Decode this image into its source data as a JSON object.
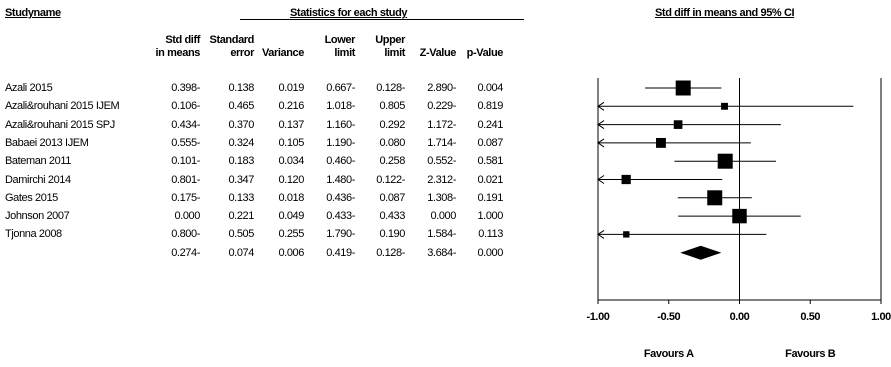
{
  "header": {
    "study_name": "Studyname",
    "stats_group": "Statistics for each study",
    "ci_title": "Std diff in means and 95% CI"
  },
  "columns": [
    "Std diff\nin means",
    "Standard\nerror",
    "Variance",
    "Lower\nlimit",
    "Upper\nlimit",
    "Z-Value",
    "p-Value"
  ],
  "rows": [
    {
      "study": "Azali 2015",
      "cells": [
        "0.398-",
        "0.138",
        "0.019",
        "0.667-",
        "0.128-",
        "2.890-",
        "0.004"
      ]
    },
    {
      "study": "Azali&rouhani 2015 IJEM",
      "cells": [
        "0.106-",
        "0.465",
        "0.216",
        "1.018-",
        "0.805",
        "0.229-",
        "0.819"
      ]
    },
    {
      "study": "Azali&rouhani 2015 SPJ",
      "cells": [
        "0.434-",
        "0.370",
        "0.137",
        "1.160-",
        "0.292",
        "1.172-",
        "0.241"
      ]
    },
    {
      "study": "Babaei 2013 IJEM",
      "cells": [
        "0.555-",
        "0.324",
        "0.105",
        "1.190-",
        "0.080",
        "1.714-",
        "0.087"
      ]
    },
    {
      "study": "Bateman 2011",
      "cells": [
        "0.101-",
        "0.183",
        "0.034",
        "0.460-",
        "0.258",
        "0.552-",
        "0.581"
      ]
    },
    {
      "study": "Damirchi 2014",
      "cells": [
        "0.801-",
        "0.347",
        "0.120",
        "1.480-",
        "0.122-",
        "2.312-",
        "0.021"
      ]
    },
    {
      "study": "Gates 2015",
      "cells": [
        "0.175-",
        "0.133",
        "0.018",
        "0.436-",
        "0.087",
        "1.308-",
        "0.191"
      ]
    },
    {
      "study": "Johnson 2007",
      "cells": [
        "0.000",
        "0.221",
        "0.049",
        "0.433-",
        "0.433",
        "0.000",
        "1.000"
      ]
    },
    {
      "study": "Tjonna 2008",
      "cells": [
        "0.800-",
        "0.505",
        "0.255",
        "1.790-",
        "0.190",
        "1.584-",
        "0.113"
      ]
    },
    {
      "study": "",
      "cells": [
        "0.274-",
        "0.074",
        "0.006",
        "0.419-",
        "0.128-",
        "3.684-",
        "0.000"
      ]
    }
  ],
  "chart_data": {
    "type": "scatter",
    "subtype": "forest-plot",
    "title": "Std diff in means and 95% CI",
    "xlim": [
      -1.0,
      1.0
    ],
    "ticks": [
      "-1.00",
      "-0.50",
      "0.00",
      "0.50",
      "1.00"
    ],
    "tick_values": [
      -1.0,
      -0.5,
      0.0,
      0.5,
      1.0
    ],
    "favours_left": "Favours A",
    "favours_right": "Favours B",
    "studies": [
      {
        "name": "Azali 2015",
        "effect": -0.398,
        "lower": -0.667,
        "upper": -0.128,
        "weight": 0.019
      },
      {
        "name": "Azali&rouhani 2015 IJEM",
        "effect": -0.106,
        "lower": -1.018,
        "upper": 0.805,
        "weight": 0.216
      },
      {
        "name": "Azali&rouhani 2015 SPJ",
        "effect": -0.434,
        "lower": -1.16,
        "upper": 0.292,
        "weight": 0.137
      },
      {
        "name": "Babaei 2013 IJEM",
        "effect": -0.555,
        "lower": -1.19,
        "upper": 0.08,
        "weight": 0.105
      },
      {
        "name": "Bateman 2011",
        "effect": -0.101,
        "lower": -0.46,
        "upper": 0.258,
        "weight": 0.034
      },
      {
        "name": "Damirchi 2014",
        "effect": -0.801,
        "lower": -1.48,
        "upper": -0.122,
        "weight": 0.12
      },
      {
        "name": "Gates 2015",
        "effect": -0.175,
        "lower": -0.436,
        "upper": 0.087,
        "weight": 0.018
      },
      {
        "name": "Johnson 2007",
        "effect": 0.0,
        "lower": -0.433,
        "upper": 0.433,
        "weight": 0.049
      },
      {
        "name": "Tjonna 2008",
        "effect": -0.8,
        "lower": -1.79,
        "upper": 0.19,
        "weight": 0.255
      }
    ],
    "summary": {
      "effect": -0.274,
      "lower": -0.419,
      "upper": -0.128
    }
  }
}
